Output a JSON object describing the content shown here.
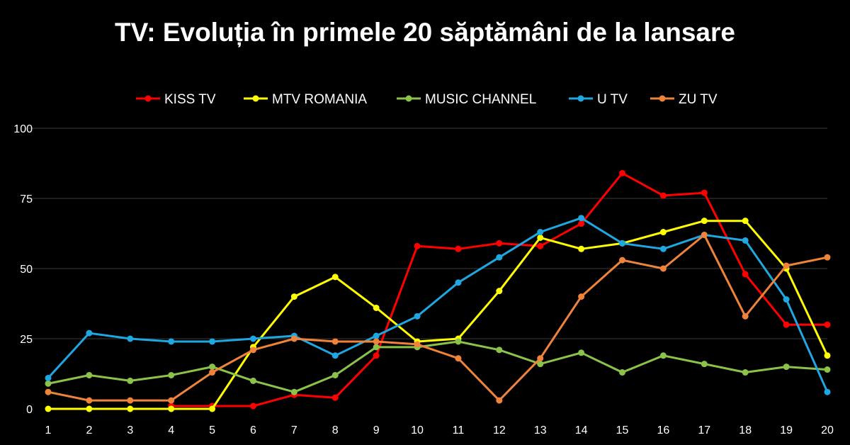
{
  "chart_data": {
    "type": "line",
    "title": "TV: Evoluția în primele 20 săptămâni de la lansare",
    "x": [
      1,
      2,
      3,
      4,
      5,
      6,
      7,
      8,
      9,
      10,
      11,
      12,
      13,
      14,
      15,
      16,
      17,
      18,
      19,
      20
    ],
    "y_ticks": [
      0,
      25,
      50,
      75,
      100
    ],
    "ylim": [
      0,
      100
    ],
    "grid": true,
    "legend_position": "top",
    "series": [
      {
        "name": "KISS TV",
        "color": "#ff0000",
        "values": [
          null,
          null,
          null,
          1,
          1,
          1,
          5,
          4,
          19,
          58,
          57,
          59,
          58,
          66,
          84,
          76,
          77,
          48,
          30,
          30
        ]
      },
      {
        "name": "MTV ROMANIA",
        "color": "#ffff00",
        "values": [
          0,
          0,
          0,
          0,
          0,
          22,
          40,
          47,
          36,
          24,
          25,
          42,
          61,
          57,
          59,
          63,
          67,
          67,
          50,
          19
        ]
      },
      {
        "name": "MUSIC CHANNEL",
        "color": "#8bc34a",
        "values": [
          9,
          12,
          10,
          12,
          15,
          10,
          6,
          12,
          22,
          22,
          24,
          21,
          16,
          20,
          13,
          19,
          16,
          13,
          15,
          14
        ]
      },
      {
        "name": "U TV",
        "color": "#1ea7e0",
        "values": [
          11,
          27,
          25,
          24,
          24,
          25,
          26,
          19,
          26,
          33,
          45,
          54,
          63,
          68,
          59,
          57,
          62,
          60,
          39,
          6
        ]
      },
      {
        "name": "ZU TV",
        "color": "#f0833a",
        "values": [
          6,
          3,
          3,
          3,
          13,
          21,
          25,
          24,
          24,
          23,
          18,
          3,
          18,
          40,
          53,
          50,
          62,
          33,
          51,
          54
        ]
      }
    ]
  }
}
